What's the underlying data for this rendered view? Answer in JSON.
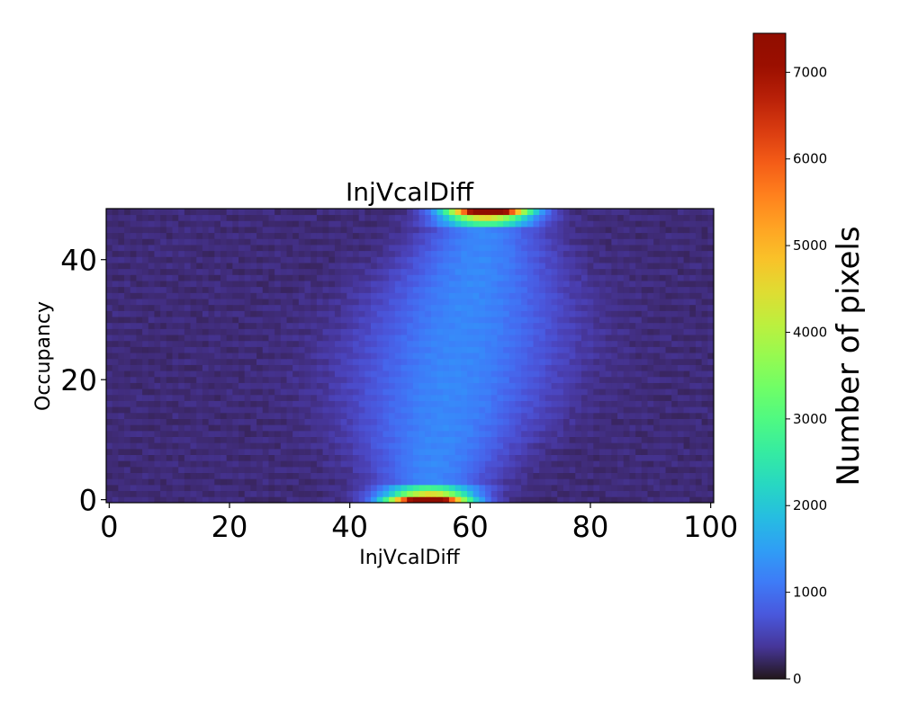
{
  "chart_data": {
    "type": "heatmap",
    "title": "InjVcalDiff",
    "xlabel": "InjVcalDiff",
    "ylabel": "Occupancy",
    "colorbar_label": "Number of pixels",
    "colormap": "turbo",
    "xlim": [
      -0.5,
      100.5
    ],
    "ylim": [
      -0.5,
      48.5
    ],
    "x_ticks": [
      0,
      20,
      40,
      60,
      80,
      100
    ],
    "y_ticks": [
      0,
      20,
      40
    ],
    "color_range": [
      0,
      7450
    ],
    "colorbar_ticks": [
      0,
      1000,
      2000,
      3000,
      4000,
      5000,
      6000,
      7000
    ],
    "grid": false,
    "x_bins": 101,
    "y_bins": 49,
    "model": {
      "description_hidden": true,
      "center_bottom": 53,
      "center_top": 63,
      "width_edges": 5,
      "width_middle": 11,
      "background": 250,
      "middle_level": 1000,
      "edge_peak": 7300,
      "edge_near": 3200
    }
  }
}
